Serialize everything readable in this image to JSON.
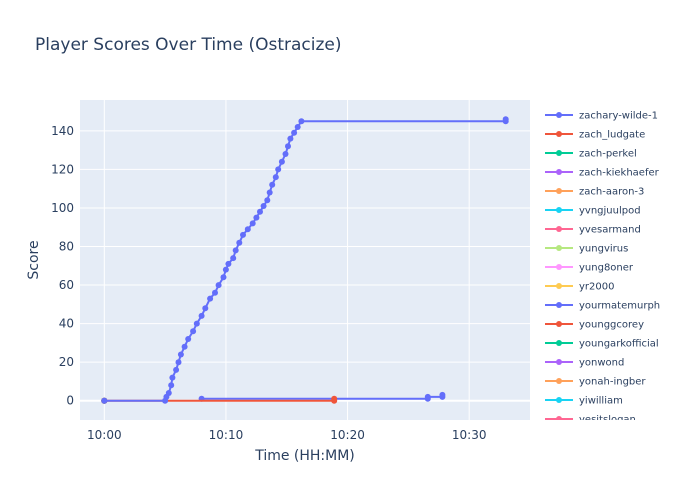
{
  "chart_data": {
    "type": "line",
    "title": "Player Scores Over Time (Ostracize)",
    "xlabel": "Time (HH:MM)",
    "ylabel": "Score",
    "x_unit": "minutes after 10:00",
    "xlim": [
      -2,
      35
    ],
    "ylim": [
      -10,
      156
    ],
    "x_ticks": [
      {
        "value": 0,
        "label": "10:00"
      },
      {
        "value": 10,
        "label": "10:10"
      },
      {
        "value": 20,
        "label": "10:20"
      },
      {
        "value": 30,
        "label": "10:30"
      }
    ],
    "y_ticks": [
      0,
      20,
      40,
      60,
      80,
      100,
      120,
      140
    ],
    "grid": true,
    "legend_position": "right",
    "series": [
      {
        "name": "zachary-wilde-1",
        "color": "#636efa",
        "points": [
          [
            0,
            0
          ],
          [
            5.0,
            0
          ],
          [
            5.1,
            2
          ],
          [
            5.3,
            4
          ],
          [
            5.5,
            8
          ],
          [
            5.6,
            12
          ],
          [
            5.9,
            16
          ],
          [
            6.1,
            20
          ],
          [
            6.3,
            24
          ],
          [
            6.6,
            28
          ],
          [
            6.9,
            32
          ],
          [
            7.3,
            36
          ],
          [
            7.6,
            40
          ],
          [
            8.0,
            44
          ],
          [
            8.3,
            48
          ],
          [
            8.7,
            53
          ],
          [
            9.1,
            56
          ],
          [
            9.4,
            60
          ],
          [
            9.8,
            64
          ],
          [
            10.0,
            68
          ],
          [
            10.2,
            71
          ],
          [
            10.6,
            74
          ],
          [
            10.8,
            78
          ],
          [
            11.1,
            82
          ],
          [
            11.4,
            86
          ],
          [
            11.8,
            89
          ],
          [
            12.2,
            92
          ],
          [
            12.5,
            95
          ],
          [
            12.8,
            98
          ],
          [
            13.1,
            101
          ],
          [
            13.4,
            104
          ],
          [
            13.6,
            108
          ],
          [
            13.8,
            112
          ],
          [
            14.1,
            116
          ],
          [
            14.3,
            120
          ],
          [
            14.6,
            124
          ],
          [
            14.9,
            128
          ],
          [
            15.1,
            132
          ],
          [
            15.3,
            136
          ],
          [
            15.6,
            139
          ],
          [
            15.9,
            142
          ],
          [
            16.2,
            145
          ],
          [
            33.0,
            145
          ],
          [
            33.0,
            146
          ]
        ]
      },
      {
        "name": "zach_ludgate",
        "color": "#ef553b",
        "points": [
          [
            0,
            0
          ],
          [
            18.9,
            0
          ],
          [
            18.9,
            1
          ]
        ]
      },
      {
        "name": "zach-perkel",
        "color": "#00cc96",
        "points": [
          [
            0,
            0
          ]
        ]
      },
      {
        "name": "zach-kiekhaefer",
        "color": "#ab63fa",
        "points": [
          [
            0,
            0
          ]
        ]
      },
      {
        "name": "zach-aaron-3",
        "color": "#ffa15a",
        "points": [
          [
            0,
            0
          ]
        ]
      },
      {
        "name": "yvngjuulpod",
        "color": "#19d3f3",
        "points": [
          [
            0,
            0
          ]
        ]
      },
      {
        "name": "yvesarmand",
        "color": "#ff6692",
        "points": [
          [
            0,
            0
          ]
        ]
      },
      {
        "name": "yungvirus",
        "color": "#b6e880",
        "points": [
          [
            0,
            0
          ]
        ]
      },
      {
        "name": "yung8oner",
        "color": "#ff97ff",
        "points": [
          [
            0,
            0
          ]
        ]
      },
      {
        "name": "yr2000",
        "color": "#fecb52",
        "points": [
          [
            0,
            0
          ]
        ]
      },
      {
        "name": "yourmatemurph",
        "color": "#636efa",
        "points": [
          [
            8.0,
            1
          ],
          [
            26.6,
            1
          ],
          [
            26.6,
            2
          ],
          [
            27.8,
            2
          ],
          [
            27.8,
            3
          ]
        ]
      },
      {
        "name": "younggcorey",
        "color": "#ef553b",
        "points": [
          [
            0,
            0
          ]
        ]
      },
      {
        "name": "youngarkofficial",
        "color": "#00cc96",
        "points": [
          [
            0,
            0
          ]
        ]
      },
      {
        "name": "yonwond",
        "color": "#ab63fa",
        "points": [
          [
            0,
            0
          ]
        ]
      },
      {
        "name": "yonah-ingber",
        "color": "#ffa15a",
        "points": [
          [
            0,
            0
          ]
        ]
      },
      {
        "name": "yiwilliam",
        "color": "#19d3f3",
        "points": [
          [
            0,
            0
          ]
        ]
      },
      {
        "name": "yesitslogan",
        "color": "#ff6692",
        "points": [
          [
            0,
            0
          ]
        ]
      }
    ]
  }
}
